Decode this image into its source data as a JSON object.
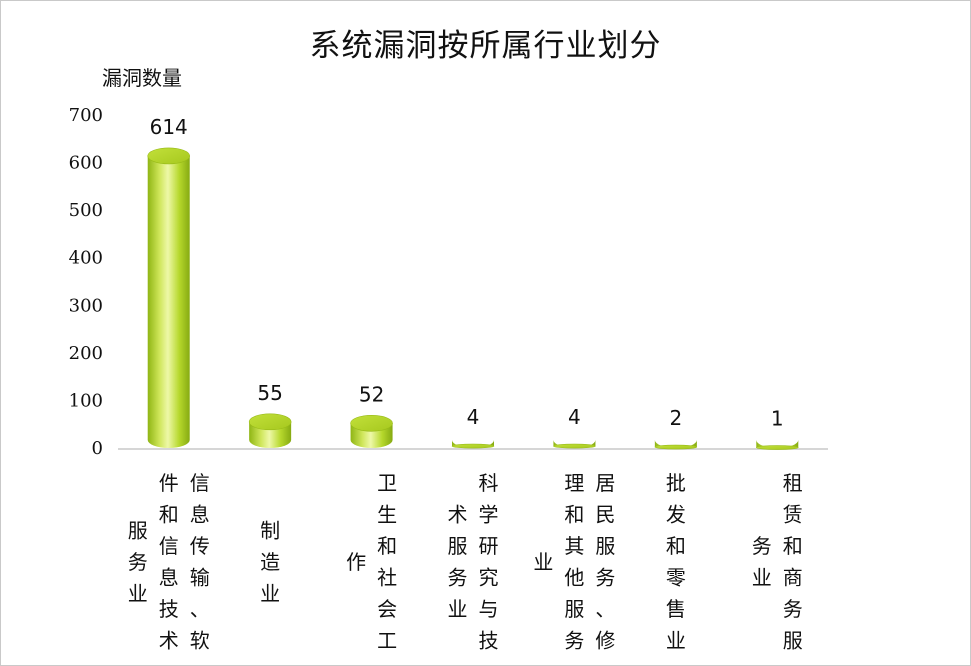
{
  "chart_data": {
    "type": "bar",
    "title": "系统漏洞按所属行业划分",
    "ylabel": "漏洞数量",
    "xlabel": "",
    "ylim": [
      0,
      700
    ],
    "yticks": [
      0,
      100,
      200,
      300,
      400,
      500,
      600,
      700
    ],
    "categories": [
      "信息传输、软件和信息技术服务业",
      "制造业",
      "卫生和社会工作",
      "科学研究与技术服务业",
      "居民服务、修理和其他服务业",
      "批发和零售业",
      "租赁和商务服务业"
    ],
    "values": [
      614,
      55,
      52,
      4,
      4,
      2,
      1
    ],
    "data_labels": [
      "614",
      "55",
      "52",
      "4",
      "4",
      "2",
      "1"
    ],
    "grid": false,
    "legend": "none",
    "bar_style": "cylinder",
    "colors": {
      "bar_light": "#dcee7a",
      "bar_mid": "#a8cc1e",
      "bar_dark": "#7fa010",
      "axis": "#c8c8c8"
    }
  }
}
